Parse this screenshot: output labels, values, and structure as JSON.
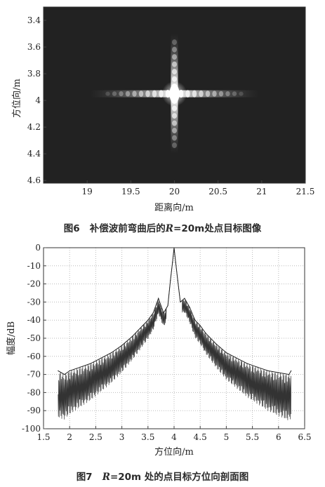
{
  "figure6": {
    "caption_prefix": "图6",
    "caption_main": "补偿波前弯曲后的",
    "caption_var": "R",
    "caption_tail": "=20m处点目标图像",
    "chart_data": {
      "type": "heatmap",
      "xlabel": "距离向/m",
      "ylabel": "方位向/m",
      "xlim": [
        18.5,
        21.5
      ],
      "ylim": [
        3.3,
        4.62
      ],
      "x_ticks": [
        "19",
        "19.5",
        "20",
        "20.5",
        "21",
        "21.5"
      ],
      "y_ticks": [
        "3.4",
        "3.6",
        "3.8",
        "4",
        "4.2",
        "4.4",
        "4.6"
      ],
      "target_point": {
        "x": 20.0,
        "y": 3.95
      },
      "colormap": "gray"
    }
  },
  "figure7": {
    "caption_prefix": "图7",
    "caption_var": "R",
    "caption_tail": "=20m 处的点目标方位向剖面图",
    "chart_data": {
      "type": "line",
      "xlabel": "方位向/m",
      "ylabel": "幅度/dB",
      "xlim": [
        1.5,
        6.5
      ],
      "ylim": [
        -100,
        0
      ],
      "x_ticks": [
        "1.5",
        "2",
        "2.5",
        "3",
        "3.5",
        "4",
        "4.5",
        "5",
        "5.5",
        "6",
        "6.5"
      ],
      "y_ticks": [
        "0",
        "-10",
        "-20",
        "-30",
        "-40",
        "-50",
        "-60",
        "-70",
        "-80",
        "-90",
        "-100"
      ],
      "grid": true,
      "series": [
        {
          "x": [
            1.78,
            1.9,
            2.0,
            2.2,
            2.4,
            2.6,
            2.8,
            3.0,
            3.2,
            3.4,
            3.5,
            3.6,
            3.7,
            3.8,
            3.88,
            3.93,
            3.97,
            4.0,
            4.03,
            4.07,
            4.12,
            4.2,
            4.3,
            4.4,
            4.5,
            4.6,
            4.8,
            5.0,
            5.2,
            5.4,
            5.6,
            5.8,
            6.0,
            6.2,
            6.24
          ],
          "y": [
            -68,
            -70,
            -68,
            -66,
            -64,
            -61,
            -58,
            -54,
            -49,
            -43,
            -40,
            -36,
            -28,
            -36,
            -32,
            -18,
            -8,
            0,
            -8,
            -18,
            -30,
            -28,
            -33,
            -40,
            -43,
            -47,
            -53,
            -58,
            -61,
            -64,
            -66,
            -68,
            -69,
            -70,
            -68
          ]
        }
      ]
    }
  }
}
